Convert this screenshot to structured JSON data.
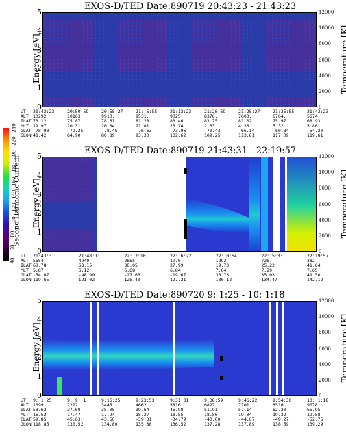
{
  "colorbar": {
    "label": "Second Harmonic Current",
    "ticks": [
      "40",
      "60",
      "80",
      "100",
      "120",
      "140",
      "160",
      "180",
      "200",
      "220",
      "240"
    ],
    "colors": [
      "#000000",
      "#3a0040",
      "#5a007a",
      "#3010b0",
      "#1d4ee0",
      "#1aa6f0",
      "#12d6c0",
      "#20e040",
      "#c8f000",
      "#ffe000",
      "#ff9000",
      "#ff1010"
    ]
  },
  "panels": [
    {
      "title": "EXOS-D/TED    Date:890719  20:43:23 - 21:43:23",
      "ylabel": "Energy [eV]",
      "rlabel": "Temperature [K]",
      "yticks": [
        "0",
        "1",
        "2",
        "3",
        "4",
        "5"
      ],
      "rticks": [
        "0",
        "2000",
        "4000",
        "6000",
        "8000",
        "10000",
        "12000"
      ],
      "eph_labels": [
        "UT",
        "ALT",
        "ILAT",
        "MLT",
        "GLAT",
        "GLON"
      ],
      "eph_cols": [
        [
          "20:43:23",
          "10292",
          "73.12",
          "19.97",
          "-78.93",
          "48.42"
        ],
        [
          "20:50:59",
          "10163",
          "75.87",
          "20.31",
          "-79.25",
          "64.90"
        ],
        [
          "20:58:27",
          "9910.",
          "78.61",
          "20.84",
          "-78.45",
          "80.89"
        ],
        [
          "21: 5:55",
          "9531.",
          "81.28",
          "21.81",
          "-76.63",
          "93.30"
        ],
        [
          "21:13:23",
          "9025.",
          "83.46",
          "23.74",
          "-73.96",
          "102.62"
        ],
        [
          "21:20:59",
          "8376.",
          "83.75",
          "2.53",
          "-70.43",
          "109.25"
        ],
        [
          "21:28:27",
          "7603.",
          "81.02",
          "4.38",
          "-66.14",
          "113.81"
        ],
        [
          "21:35:55",
          "6704.",
          "75.97",
          "5.32",
          "-60.84",
          "117.09"
        ],
        [
          "21:43:23",
          "5674.",
          "68.93",
          "5.86",
          "-54.20",
          "119.61"
        ]
      ]
    },
    {
      "title": "EXOS-D/TED    Date:890719  21:43:31 - 22:19:57",
      "ylabel": "Energy [eV]",
      "rlabel": "Temperature [K]",
      "yticks": [
        "0",
        "1",
        "2",
        "3",
        "4",
        "5"
      ],
      "rticks": [
        "0",
        "2000",
        "4000",
        "6000",
        "8000",
        "10000",
        "12000"
      ],
      "eph_labels": [
        "UT",
        "ALT",
        "ILAT",
        "MLT",
        "GLAT",
        "GLON"
      ],
      "eph_cols": [
        [
          "21:43:31",
          "5654",
          "68.78",
          "5.87",
          "-54.07",
          "119.65"
        ],
        [
          "21:48:11",
          "4949",
          "63.15",
          "6.12",
          "-48.99",
          "121.02"
        ],
        [
          "22: 2:10",
          "2655",
          "38.05",
          "6.68",
          "-27.66",
          "125.40"
        ],
        [
          "22: 6:22",
          "1970",
          "27.99",
          "6.84",
          "-19.67",
          "127.21"
        ],
        [
          "22:10:54",
          "1292",
          "19.73",
          "7.04",
          "30.73",
          "130.12"
        ],
        [
          "22:15:33",
          "726.",
          "25.22",
          "7.29",
          "35.03",
          "134.47"
        ],
        [
          "22:19:57",
          "382",
          "41.64",
          "7.65",
          "49.50",
          "142.12"
        ]
      ]
    },
    {
      "title": "EXOS-D/TED    Date:890720  9: 1:25 - 10: 1:18",
      "ylabel": "Energy [eV]",
      "rlabel": "Temperature [K]",
      "yticks": [
        "0",
        "1",
        "2",
        "3",
        "4",
        "5"
      ],
      "rticks": [
        "0",
        "2000",
        "4000",
        "6000",
        "8000",
        "10000",
        "12000"
      ],
      "eph_labels": [
        "UT",
        "ALT",
        "ILAT",
        "MLT",
        "GLAT",
        "GLON"
      ],
      "eph_cols": [
        [
          "9: 1:25",
          "1099",
          "53.62",
          "16.52",
          "59.85",
          "118.85"
        ],
        [
          "9: 9: 1",
          "2222.",
          "37.60",
          "17.47",
          "45.63",
          "130.52"
        ],
        [
          "9:16:25",
          "3445.",
          "35.08",
          "17.94",
          "43.50",
          "134.80"
        ],
        [
          "9:23:53",
          "4662.",
          "39.64",
          "18.27",
          "-39.31",
          "135.38"
        ],
        [
          "9:31:31",
          "5816.",
          "45.98",
          "18.55",
          "-34.79",
          "136.52"
        ],
        [
          "9:38:59",
          "6827.",
          "51.91",
          "18.80",
          "-40.00",
          "137.28"
        ],
        [
          "9:46:22",
          "7701.",
          "57.14",
          "19.04",
          "-44.67",
          "137.89"
        ],
        [
          "9:54:30",
          "8516.",
          "62.20",
          "19.32",
          "-49.27",
          "138.59"
        ],
        [
          "10: 1:18",
          "9078.",
          "65.95",
          "19.58",
          "-52.75",
          "139.29"
        ]
      ]
    }
  ]
}
